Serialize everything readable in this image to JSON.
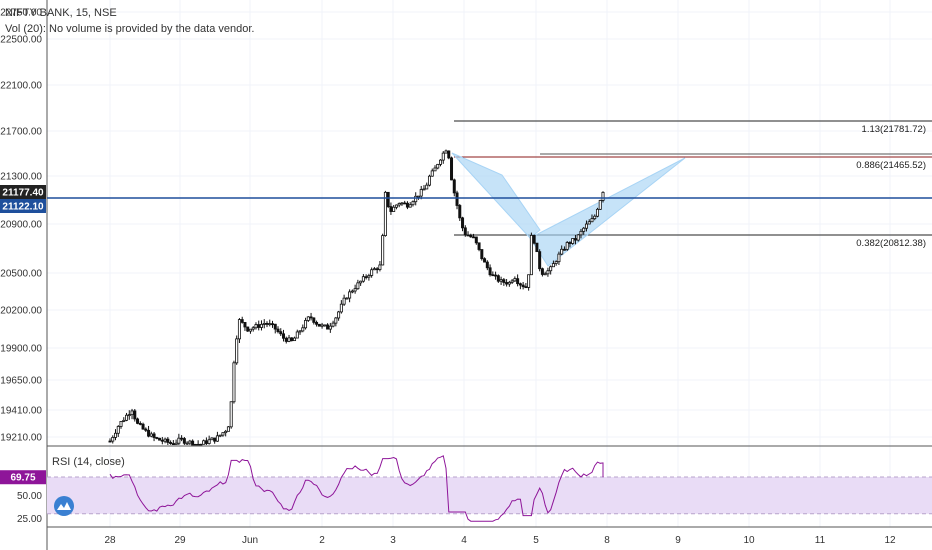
{
  "header": {
    "symbol_line": "NIFTY BANK, 15, NSE",
    "volume_line": "Vol (20): No volume is provided by the data vendor."
  },
  "price_axis": {
    "labels": [
      "22750.00",
      "22500.00",
      "22100.00",
      "21700.00",
      "21300.00",
      "20900.00",
      "20500.00",
      "20200.00",
      "19900.00",
      "19650.00",
      "19410.00",
      "19210.00"
    ],
    "current_price_tag": "21177.40",
    "current_price_color": "#222222",
    "line_price_tag": "21122.10",
    "line_price_color": "#1e4f9c"
  },
  "rsi": {
    "legend": "RSI (14, close)",
    "value_tag": "69.75",
    "value_color": "#8e1599",
    "band_color": "#e9dcf6",
    "axis_labels": [
      "50.00",
      "25.00"
    ]
  },
  "time_axis": {
    "labels": [
      "28",
      "29",
      "Jun",
      "2",
      "3",
      "4",
      "5",
      "8",
      "9",
      "10",
      "11",
      "12"
    ]
  },
  "fib_levels": [
    {
      "label": "1.13(21781.72)"
    },
    {
      "label": "0.886(21465.52)"
    },
    {
      "label": "0.382(20812.38)"
    }
  ],
  "pattern_color": "#a8d4f5",
  "chart_data": {
    "type": "candlestick",
    "title": "NIFTY BANK, 15, NSE",
    "price_range": [
      19100,
      22850
    ],
    "pattern_points": [
      {
        "t": 41.9,
        "p": 21580
      },
      {
        "t": 50.4,
        "p": 20860
      },
      {
        "t": 65.2,
        "p": 21495
      },
      {
        "t": 56.9,
        "p": 20560
      },
      {
        "t": 59.9,
        "p": 21150
      }
    ],
    "rsi_last": 69.75,
    "rsi_range": [
      20,
      95
    ]
  }
}
